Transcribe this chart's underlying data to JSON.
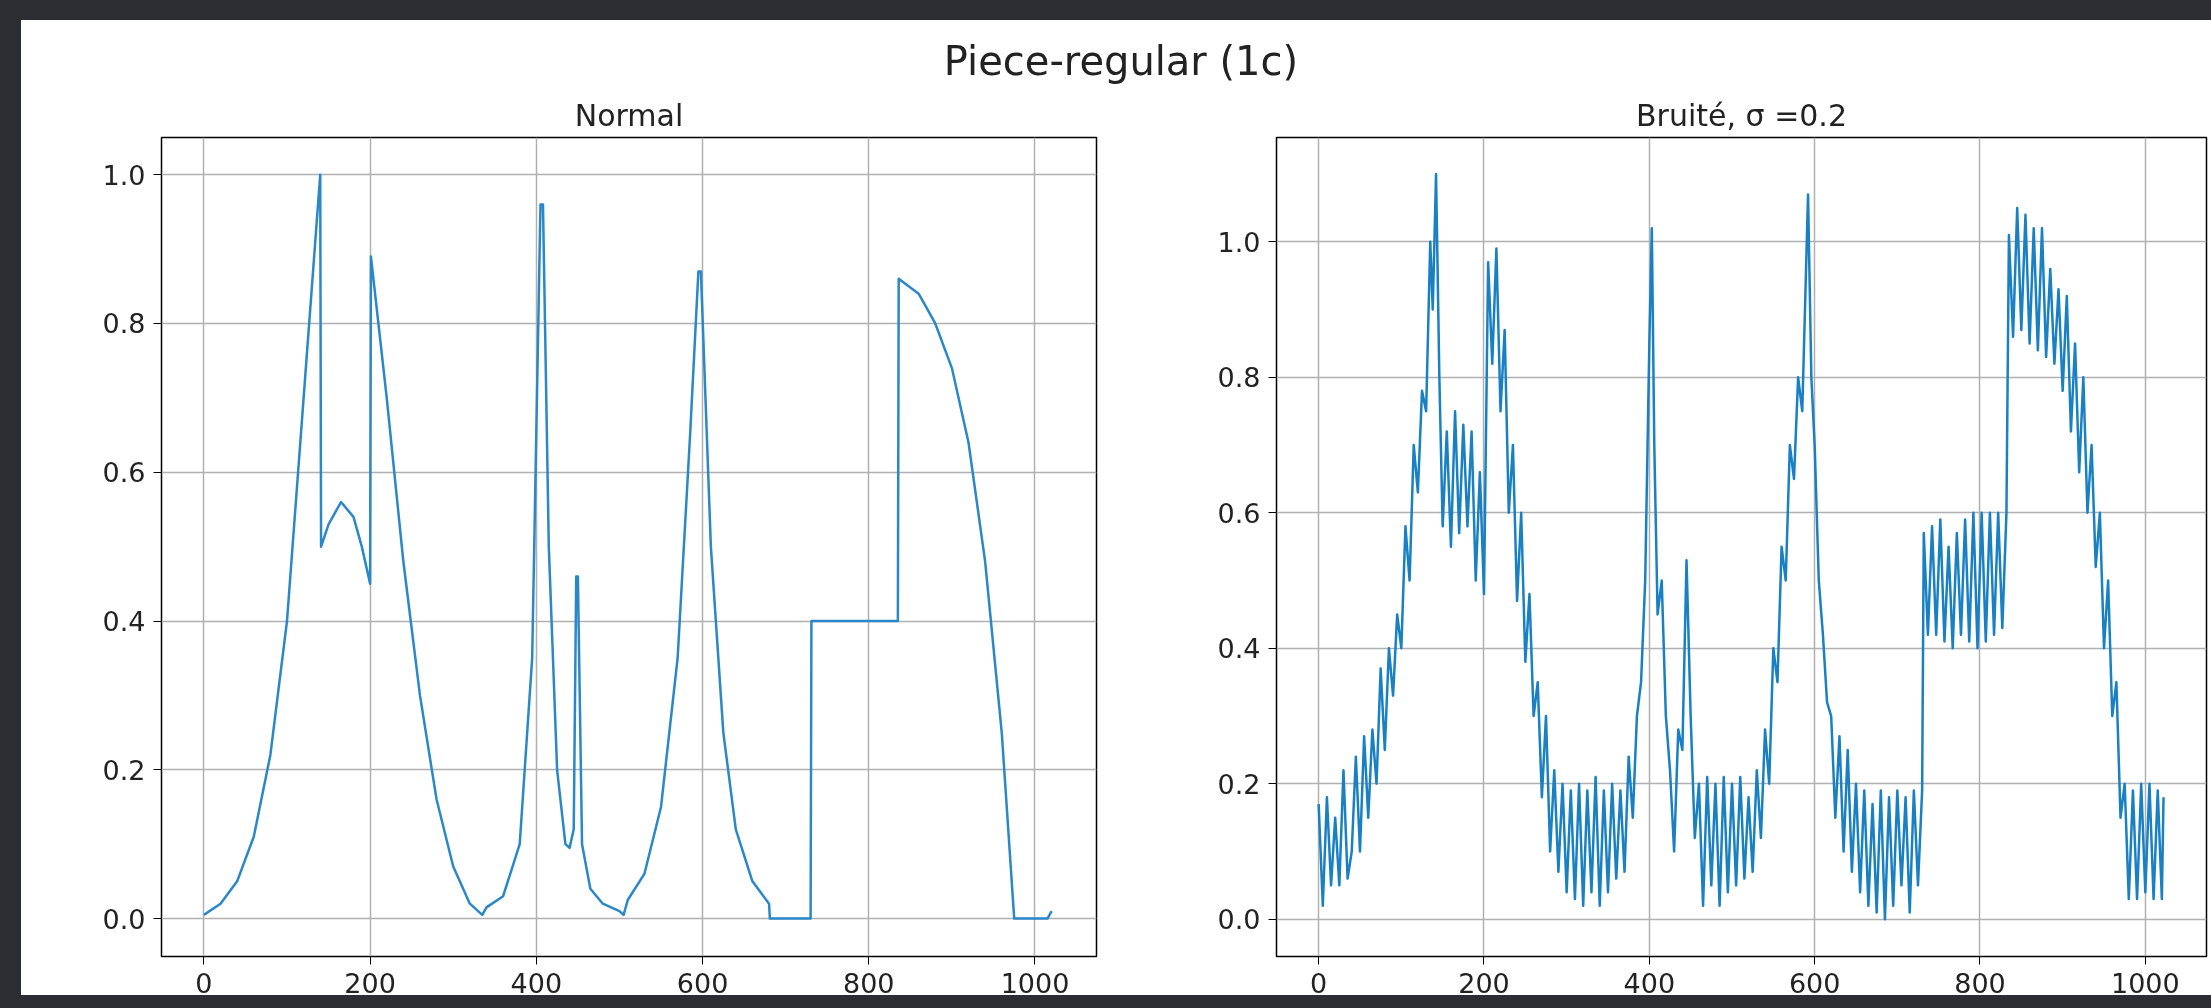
{
  "chart_data": [
    {
      "type": "line",
      "title": "Piece-regular (1c)",
      "subtitle": "Normal",
      "xlim": [
        -51,
        1074
      ],
      "ylim": [
        -0.051,
        1.05
      ],
      "xticks": [
        0,
        200,
        400,
        600,
        800,
        1000
      ],
      "yticks": [
        {
          "value": 0,
          "label": "0.0"
        },
        {
          "value": 0.2,
          "label": "0.2"
        },
        {
          "value": 0.4,
          "label": "0.4"
        },
        {
          "value": 0.6,
          "label": "0.6"
        },
        {
          "value": 0.8,
          "label": "0.8"
        },
        {
          "value": 1,
          "label": "1.0"
        }
      ],
      "grid": true,
      "series": [
        {
          "color": "#2a88c8",
          "x": [
            0,
            20,
            40,
            60,
            80,
            100,
            120,
            140,
            141,
            150,
            165,
            180,
            190,
            200,
            201,
            220,
            240,
            260,
            280,
            300,
            320,
            335,
            340,
            360,
            380,
            395,
            405,
            408,
            415,
            425,
            435,
            440,
            445,
            448,
            450,
            455,
            465,
            480,
            500,
            505,
            510,
            530,
            550,
            570,
            585,
            595,
            598,
            610,
            625,
            640,
            660,
            680,
            681,
            730,
            731,
            835,
            836,
            860,
            880,
            900,
            920,
            940,
            960,
            975,
            1015,
            1020
          ],
          "values": [
            0.005,
            0.02,
            0.05,
            0.11,
            0.22,
            0.4,
            0.7,
            1.0,
            0.5,
            0.53,
            0.56,
            0.54,
            0.5,
            0.45,
            0.89,
            0.7,
            0.48,
            0.3,
            0.16,
            0.07,
            0.02,
            0.005,
            0.015,
            0.03,
            0.1,
            0.35,
            0.96,
            0.96,
            0.5,
            0.2,
            0.1,
            0.095,
            0.12,
            0.46,
            0.46,
            0.1,
            0.04,
            0.02,
            0.01,
            0.005,
            0.025,
            0.06,
            0.15,
            0.35,
            0.65,
            0.87,
            0.87,
            0.5,
            0.25,
            0.12,
            0.05,
            0.02,
            0.0,
            0.0,
            0.4,
            0.4,
            0.86,
            0.84,
            0.8,
            0.74,
            0.64,
            0.48,
            0.25,
            0.0,
            0.0,
            0.01
          ]
        }
      ]
    },
    {
      "type": "line",
      "title": "Bruité, σ =0.2",
      "xlim": [
        -51,
        1074
      ],
      "ylim": [
        -0.055,
        1.154
      ],
      "xticks": [
        0,
        200,
        400,
        600,
        800,
        1000
      ],
      "yticks": [
        {
          "value": 0,
          "label": "0.0"
        },
        {
          "value": 0.2,
          "label": "0.2"
        },
        {
          "value": 0.4,
          "label": "0.4"
        },
        {
          "value": 0.6,
          "label": "0.6"
        },
        {
          "value": 0.8,
          "label": "0.8"
        },
        {
          "value": 1,
          "label": "1.0"
        }
      ],
      "grid": true,
      "series": [
        {
          "color": "#1a80c4",
          "x": [
            0,
            5,
            10,
            15,
            20,
            25,
            30,
            35,
            40,
            45,
            50,
            55,
            60,
            65,
            70,
            75,
            80,
            85,
            90,
            95,
            100,
            105,
            110,
            115,
            120,
            125,
            130,
            135,
            138,
            142,
            146,
            150,
            155,
            160,
            165,
            170,
            175,
            180,
            185,
            190,
            195,
            200,
            205,
            210,
            215,
            220,
            225,
            230,
            235,
            240,
            245,
            250,
            255,
            260,
            265,
            270,
            275,
            280,
            285,
            290,
            295,
            300,
            305,
            310,
            315,
            320,
            325,
            330,
            335,
            340,
            345,
            350,
            355,
            360,
            365,
            370,
            375,
            380,
            385,
            390,
            395,
            400,
            403,
            406,
            410,
            415,
            420,
            425,
            430,
            435,
            440,
            445,
            450,
            455,
            460,
            465,
            470,
            475,
            480,
            485,
            490,
            495,
            500,
            505,
            510,
            515,
            520,
            525,
            530,
            535,
            540,
            545,
            550,
            555,
            560,
            565,
            570,
            575,
            580,
            585,
            592,
            596,
            600,
            605,
            610,
            615,
            620,
            625,
            630,
            635,
            640,
            645,
            650,
            655,
            660,
            665,
            670,
            675,
            680,
            685,
            690,
            695,
            700,
            705,
            710,
            715,
            720,
            725,
            730,
            732,
            737,
            742,
            747,
            752,
            757,
            762,
            767,
            772,
            777,
            782,
            787,
            792,
            797,
            802,
            807,
            812,
            817,
            822,
            827,
            832,
            835,
            840,
            845,
            850,
            855,
            860,
            865,
            870,
            875,
            880,
            885,
            890,
            895,
            900,
            905,
            910,
            915,
            920,
            925,
            930,
            935,
            940,
            945,
            950,
            955,
            960,
            965,
            970,
            975,
            980,
            985,
            990,
            995,
            1000,
            1005,
            1010,
            1015,
            1020,
            1022
          ],
          "values": [
            0.17,
            0.02,
            0.18,
            0.05,
            0.15,
            0.05,
            0.22,
            0.06,
            0.1,
            0.24,
            0.1,
            0.27,
            0.15,
            0.28,
            0.2,
            0.37,
            0.25,
            0.4,
            0.33,
            0.45,
            0.4,
            0.58,
            0.5,
            0.7,
            0.63,
            0.78,
            0.75,
            1.0,
            0.9,
            1.1,
            0.8,
            0.58,
            0.72,
            0.55,
            0.75,
            0.57,
            0.73,
            0.58,
            0.72,
            0.5,
            0.66,
            0.48,
            0.97,
            0.82,
            0.99,
            0.75,
            0.87,
            0.6,
            0.7,
            0.47,
            0.6,
            0.38,
            0.48,
            0.3,
            0.35,
            0.18,
            0.3,
            0.1,
            0.22,
            0.07,
            0.2,
            0.04,
            0.19,
            0.03,
            0.2,
            0.02,
            0.19,
            0.04,
            0.21,
            0.02,
            0.19,
            0.04,
            0.2,
            0.06,
            0.19,
            0.07,
            0.24,
            0.15,
            0.3,
            0.35,
            0.5,
            0.85,
            1.02,
            0.7,
            0.45,
            0.5,
            0.3,
            0.22,
            0.1,
            0.28,
            0.25,
            0.53,
            0.3,
            0.12,
            0.2,
            0.02,
            0.21,
            0.05,
            0.2,
            0.02,
            0.21,
            0.04,
            0.2,
            0.05,
            0.21,
            0.06,
            0.18,
            0.07,
            0.22,
            0.12,
            0.28,
            0.2,
            0.4,
            0.35,
            0.55,
            0.5,
            0.7,
            0.65,
            0.8,
            0.75,
            1.07,
            0.8,
            0.7,
            0.5,
            0.42,
            0.32,
            0.3,
            0.15,
            0.27,
            0.1,
            0.25,
            0.07,
            0.2,
            0.04,
            0.19,
            0.02,
            0.17,
            0.01,
            0.19,
            0.0,
            0.18,
            0.02,
            0.19,
            0.05,
            0.18,
            0.01,
            0.19,
            0.05,
            0.19,
            0.57,
            0.42,
            0.58,
            0.42,
            0.59,
            0.41,
            0.55,
            0.4,
            0.57,
            0.42,
            0.59,
            0.41,
            0.6,
            0.4,
            0.6,
            0.41,
            0.6,
            0.42,
            0.6,
            0.43,
            0.6,
            1.01,
            0.86,
            1.05,
            0.87,
            1.04,
            0.85,
            1.02,
            0.84,
            1.02,
            0.83,
            0.96,
            0.82,
            0.93,
            0.78,
            0.92,
            0.72,
            0.85,
            0.66,
            0.8,
            0.6,
            0.7,
            0.52,
            0.6,
            0.4,
            0.5,
            0.3,
            0.35,
            0.15,
            0.2,
            0.03,
            0.19,
            0.03,
            0.2,
            0.04,
            0.2,
            0.03,
            0.19,
            0.03,
            0.18
          ]
        }
      ]
    }
  ]
}
